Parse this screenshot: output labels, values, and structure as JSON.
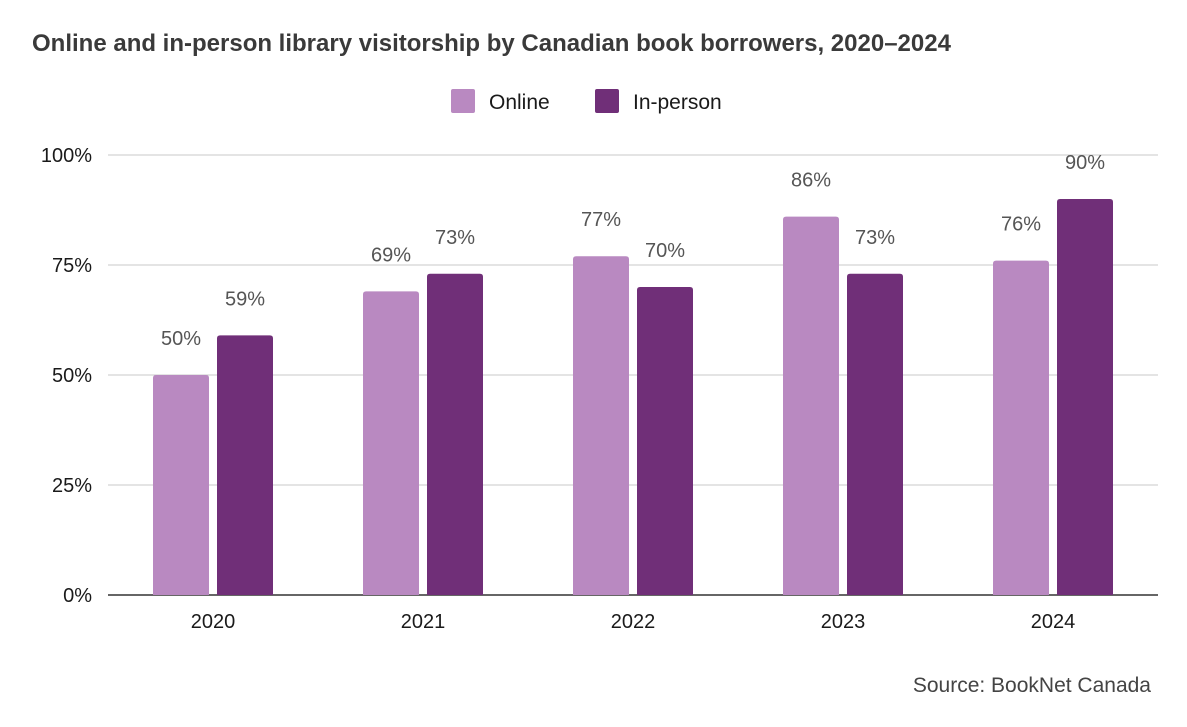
{
  "chart_data": {
    "type": "bar",
    "title": "Online and in-person library visitorship by Canadian book borrowers, 2020–2024",
    "categories": [
      "2020",
      "2021",
      "2022",
      "2023",
      "2024"
    ],
    "series": [
      {
        "name": "Online",
        "values": [
          50,
          69,
          77,
          86,
          76
        ],
        "color": "#b989c1"
      },
      {
        "name": "In-person",
        "values": [
          59,
          73,
          70,
          73,
          90
        ],
        "color": "#702f78"
      }
    ],
    "ylim": [
      0,
      100
    ],
    "yticks": [
      "0%",
      "25%",
      "50%",
      "75%",
      "100%"
    ],
    "ytick_values": [
      0,
      25,
      50,
      75,
      100
    ],
    "value_suffix": "%",
    "grid": true,
    "legend_position": "top-center",
    "xlabel": "",
    "ylabel": ""
  },
  "source": "Source: BookNet Canada"
}
